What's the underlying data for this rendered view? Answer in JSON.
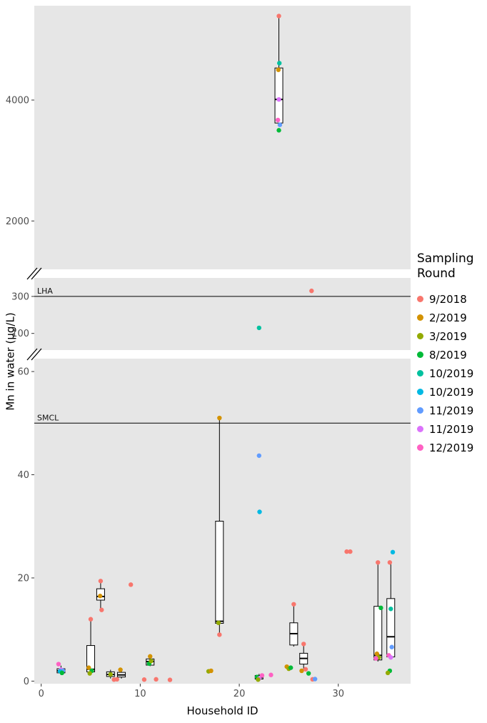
{
  "colors": {
    "panel_bg": "#E6E6E6",
    "ref_line": "#000000",
    "tick_text": "#4D4D4D"
  },
  "chart_data": {
    "type": "boxplot",
    "title": "",
    "xlabel": "Household ID",
    "ylabel": "Mn in water (μg/L)",
    "x_domain": [
      -0.7,
      37.3
    ],
    "x_ticks": [
      0,
      10,
      20,
      30
    ],
    "axis_breaks": 2,
    "legend": {
      "title": "Sampling Round",
      "position": "right",
      "items": [
        {
          "label": "9/2018",
          "color": "#F8766D"
        },
        {
          "label": "2/2019",
          "color": "#D39200"
        },
        {
          "label": "3/2019",
          "color": "#93AA00"
        },
        {
          "label": "8/2019",
          "color": "#00BA38"
        },
        {
          "label": "10/2019",
          "color": "#00C19F"
        },
        {
          "label": "10/2019",
          "color": "#00B9E3"
        },
        {
          "label": "11/2019",
          "color": "#619CFF"
        },
        {
          "label": "11/2019",
          "color": "#DB72FB"
        },
        {
          "label": "12/2019",
          "color": "#FF61C3"
        }
      ]
    },
    "panels": [
      {
        "id": "upper",
        "y_domain": [
          1200,
          5560
        ],
        "y_ticks": [
          2000,
          4000
        ]
      },
      {
        "id": "middle",
        "y_domain": [
          10,
          400
        ],
        "y_ticks": [
          100,
          300
        ],
        "ref_line": {
          "y": 300,
          "label": "LHA"
        }
      },
      {
        "id": "lower",
        "y_domain": [
          -0.5,
          62.5
        ],
        "y_ticks": [
          0,
          20,
          40,
          60
        ],
        "ref_line": {
          "y": 50,
          "label": "SMCL"
        }
      }
    ],
    "boxes": [
      {
        "p": 0,
        "x": 24.0,
        "lo": 3620,
        "q1": 3620,
        "med": 4010,
        "q3": 4530,
        "hi": 5390
      },
      {
        "p": 2,
        "x": 2.0,
        "lo": 1.2,
        "q1": 1.6,
        "med": 2.0,
        "q3": 2.4,
        "hi": 3.0
      },
      {
        "p": 2,
        "x": 5.0,
        "lo": 1.5,
        "q1": 1.8,
        "med": 2.3,
        "q3": 6.9,
        "hi": 12.0
      },
      {
        "p": 2,
        "x": 6.0,
        "lo": 13.8,
        "q1": 15.7,
        "med": 16.4,
        "q3": 17.9,
        "hi": 19.4
      },
      {
        "p": 2,
        "x": 7.0,
        "lo": 0.5,
        "q1": 0.9,
        "med": 1.3,
        "q3": 1.8,
        "hi": 2.2
      },
      {
        "p": 2,
        "x": 8.1,
        "lo": 0.5,
        "q1": 0.8,
        "med": 1.2,
        "q3": 1.7,
        "hi": 2.1
      },
      {
        "p": 2,
        "x": 11.0,
        "lo": 2.9,
        "q1": 3.1,
        "med": 3.8,
        "q3": 4.3,
        "hi": 4.8
      },
      {
        "p": 2,
        "x": 18.0,
        "lo": 9.0,
        "q1": 11.2,
        "med": 11.6,
        "q3": 31.0,
        "hi": 51.0
      },
      {
        "p": 2,
        "x": 22.0,
        "lo": 0.2,
        "q1": 0.4,
        "med": 0.7,
        "q3": 1.1,
        "hi": 1.4
      },
      {
        "p": 2,
        "x": 25.5,
        "lo": 6.7,
        "q1": 7.0,
        "med": 9.2,
        "q3": 11.3,
        "hi": 14.9
      },
      {
        "p": 2,
        "x": 26.5,
        "lo": 2.0,
        "q1": 3.3,
        "med": 4.4,
        "q3": 5.4,
        "hi": 7.2
      },
      {
        "p": 2,
        "x": 34.0,
        "lo": 3.8,
        "q1": 4.1,
        "med": 5.0,
        "q3": 14.5,
        "hi": 23.0
      },
      {
        "p": 2,
        "x": 35.3,
        "lo": 4.2,
        "q1": 4.7,
        "med": 8.6,
        "q3": 16.0,
        "hi": 23.0
      }
    ],
    "points": [
      {
        "p": 0,
        "x": 24.0,
        "y": 5390,
        "c": 0
      },
      {
        "p": 0,
        "x": 24.05,
        "y": 4610,
        "c": 4
      },
      {
        "p": 0,
        "x": 23.95,
        "y": 4500,
        "c": 1
      },
      {
        "p": 0,
        "x": 24.0,
        "y": 4010,
        "c": 7
      },
      {
        "p": 0,
        "x": 23.9,
        "y": 3670,
        "c": 8
      },
      {
        "p": 0,
        "x": 24.1,
        "y": 3590,
        "c": 6
      },
      {
        "p": 0,
        "x": 24.0,
        "y": 3500,
        "c": 3
      },
      {
        "p": 1,
        "x": 27.3,
        "y": 330,
        "c": 0
      },
      {
        "p": 1,
        "x": 22.0,
        "y": 130,
        "c": 4
      },
      {
        "p": 2,
        "x": 1.75,
        "y": 3.3,
        "c": 8
      },
      {
        "p": 2,
        "x": 2.0,
        "y": 2.2,
        "c": 7
      },
      {
        "p": 2,
        "x": 2.2,
        "y": 2.0,
        "c": 6
      },
      {
        "p": 2,
        "x": 1.9,
        "y": 1.9,
        "c": 5
      },
      {
        "p": 2,
        "x": 2.1,
        "y": 1.6,
        "c": 3
      },
      {
        "p": 2,
        "x": 5.0,
        "y": 12.0,
        "c": 0
      },
      {
        "p": 2,
        "x": 4.8,
        "y": 2.6,
        "c": 1
      },
      {
        "p": 2,
        "x": 5.1,
        "y": 2.0,
        "c": 3
      },
      {
        "p": 2,
        "x": 4.9,
        "y": 1.5,
        "c": 2
      },
      {
        "p": 2,
        "x": 6.0,
        "y": 19.4,
        "c": 0
      },
      {
        "p": 2,
        "x": 6.1,
        "y": 13.8,
        "c": 0
      },
      {
        "p": 2,
        "x": 5.95,
        "y": 16.5,
        "c": 1
      },
      {
        "p": 2,
        "x": 7.0,
        "y": 1.3,
        "c": 2
      },
      {
        "p": 2,
        "x": 7.35,
        "y": 0.3,
        "c": 0
      },
      {
        "p": 2,
        "x": 7.65,
        "y": 0.35,
        "c": 0
      },
      {
        "p": 2,
        "x": 8.0,
        "y": 2.2,
        "c": 1
      },
      {
        "p": 2,
        "x": 9.05,
        "y": 18.7,
        "c": 0
      },
      {
        "p": 2,
        "x": 10.4,
        "y": 0.3,
        "c": 0
      },
      {
        "p": 2,
        "x": 11.6,
        "y": 0.35,
        "c": 0
      },
      {
        "p": 2,
        "x": 11.0,
        "y": 4.8,
        "c": 1
      },
      {
        "p": 2,
        "x": 10.9,
        "y": 3.4,
        "c": 3
      },
      {
        "p": 2,
        "x": 11.1,
        "y": 3.9,
        "c": 2
      },
      {
        "p": 2,
        "x": 13.0,
        "y": 0.25,
        "c": 0
      },
      {
        "p": 2,
        "x": 16.9,
        "y": 1.9,
        "c": 2
      },
      {
        "p": 2,
        "x": 17.15,
        "y": 2.0,
        "c": 1
      },
      {
        "p": 2,
        "x": 18.0,
        "y": 51.0,
        "c": 1
      },
      {
        "p": 2,
        "x": 17.9,
        "y": 11.3,
        "c": 2
      },
      {
        "p": 2,
        "x": 18.0,
        "y": 9.0,
        "c": 0
      },
      {
        "p": 2,
        "x": 22.0,
        "y": 43.7,
        "c": 6
      },
      {
        "p": 2,
        "x": 22.05,
        "y": 32.8,
        "c": 5
      },
      {
        "p": 2,
        "x": 21.8,
        "y": 0.8,
        "c": 3
      },
      {
        "p": 2,
        "x": 22.3,
        "y": 1.1,
        "c": 8
      },
      {
        "p": 2,
        "x": 22.0,
        "y": 0.5,
        "c": 7
      },
      {
        "p": 2,
        "x": 21.9,
        "y": 0.3,
        "c": 2
      },
      {
        "p": 2,
        "x": 23.2,
        "y": 1.2,
        "c": 8
      },
      {
        "p": 2,
        "x": 24.8,
        "y": 2.8,
        "c": 1
      },
      {
        "p": 2,
        "x": 25.0,
        "y": 2.4,
        "c": 2
      },
      {
        "p": 2,
        "x": 25.2,
        "y": 2.6,
        "c": 3
      },
      {
        "p": 2,
        "x": 25.5,
        "y": 14.9,
        "c": 0
      },
      {
        "p": 2,
        "x": 26.5,
        "y": 7.2,
        "c": 0
      },
      {
        "p": 2,
        "x": 26.3,
        "y": 2.0,
        "c": 1
      },
      {
        "p": 2,
        "x": 26.7,
        "y": 2.3,
        "c": 0
      },
      {
        "p": 2,
        "x": 27.0,
        "y": 1.5,
        "c": 3
      },
      {
        "p": 2,
        "x": 27.4,
        "y": 0.35,
        "c": 0
      },
      {
        "p": 2,
        "x": 27.65,
        "y": 0.4,
        "c": 6
      },
      {
        "p": 2,
        "x": 30.85,
        "y": 25.1,
        "c": 0
      },
      {
        "p": 2,
        "x": 31.2,
        "y": 25.1,
        "c": 0
      },
      {
        "p": 2,
        "x": 34.0,
        "y": 23.0,
        "c": 0
      },
      {
        "p": 2,
        "x": 34.3,
        "y": 14.2,
        "c": 3
      },
      {
        "p": 2,
        "x": 33.9,
        "y": 5.3,
        "c": 1
      },
      {
        "p": 2,
        "x": 34.1,
        "y": 4.6,
        "c": 2
      },
      {
        "p": 2,
        "x": 33.8,
        "y": 4.4,
        "c": 8
      },
      {
        "p": 2,
        "x": 35.5,
        "y": 25.0,
        "c": 5
      },
      {
        "p": 2,
        "x": 35.2,
        "y": 23.0,
        "c": 0
      },
      {
        "p": 2,
        "x": 35.3,
        "y": 14.0,
        "c": 4
      },
      {
        "p": 2,
        "x": 35.4,
        "y": 6.6,
        "c": 6
      },
      {
        "p": 2,
        "x": 35.1,
        "y": 5.0,
        "c": 8
      },
      {
        "p": 2,
        "x": 35.3,
        "y": 4.6,
        "c": 7
      },
      {
        "p": 2,
        "x": 35.2,
        "y": 2.0,
        "c": 3
      },
      {
        "p": 2,
        "x": 35.0,
        "y": 1.6,
        "c": 2
      }
    ]
  }
}
